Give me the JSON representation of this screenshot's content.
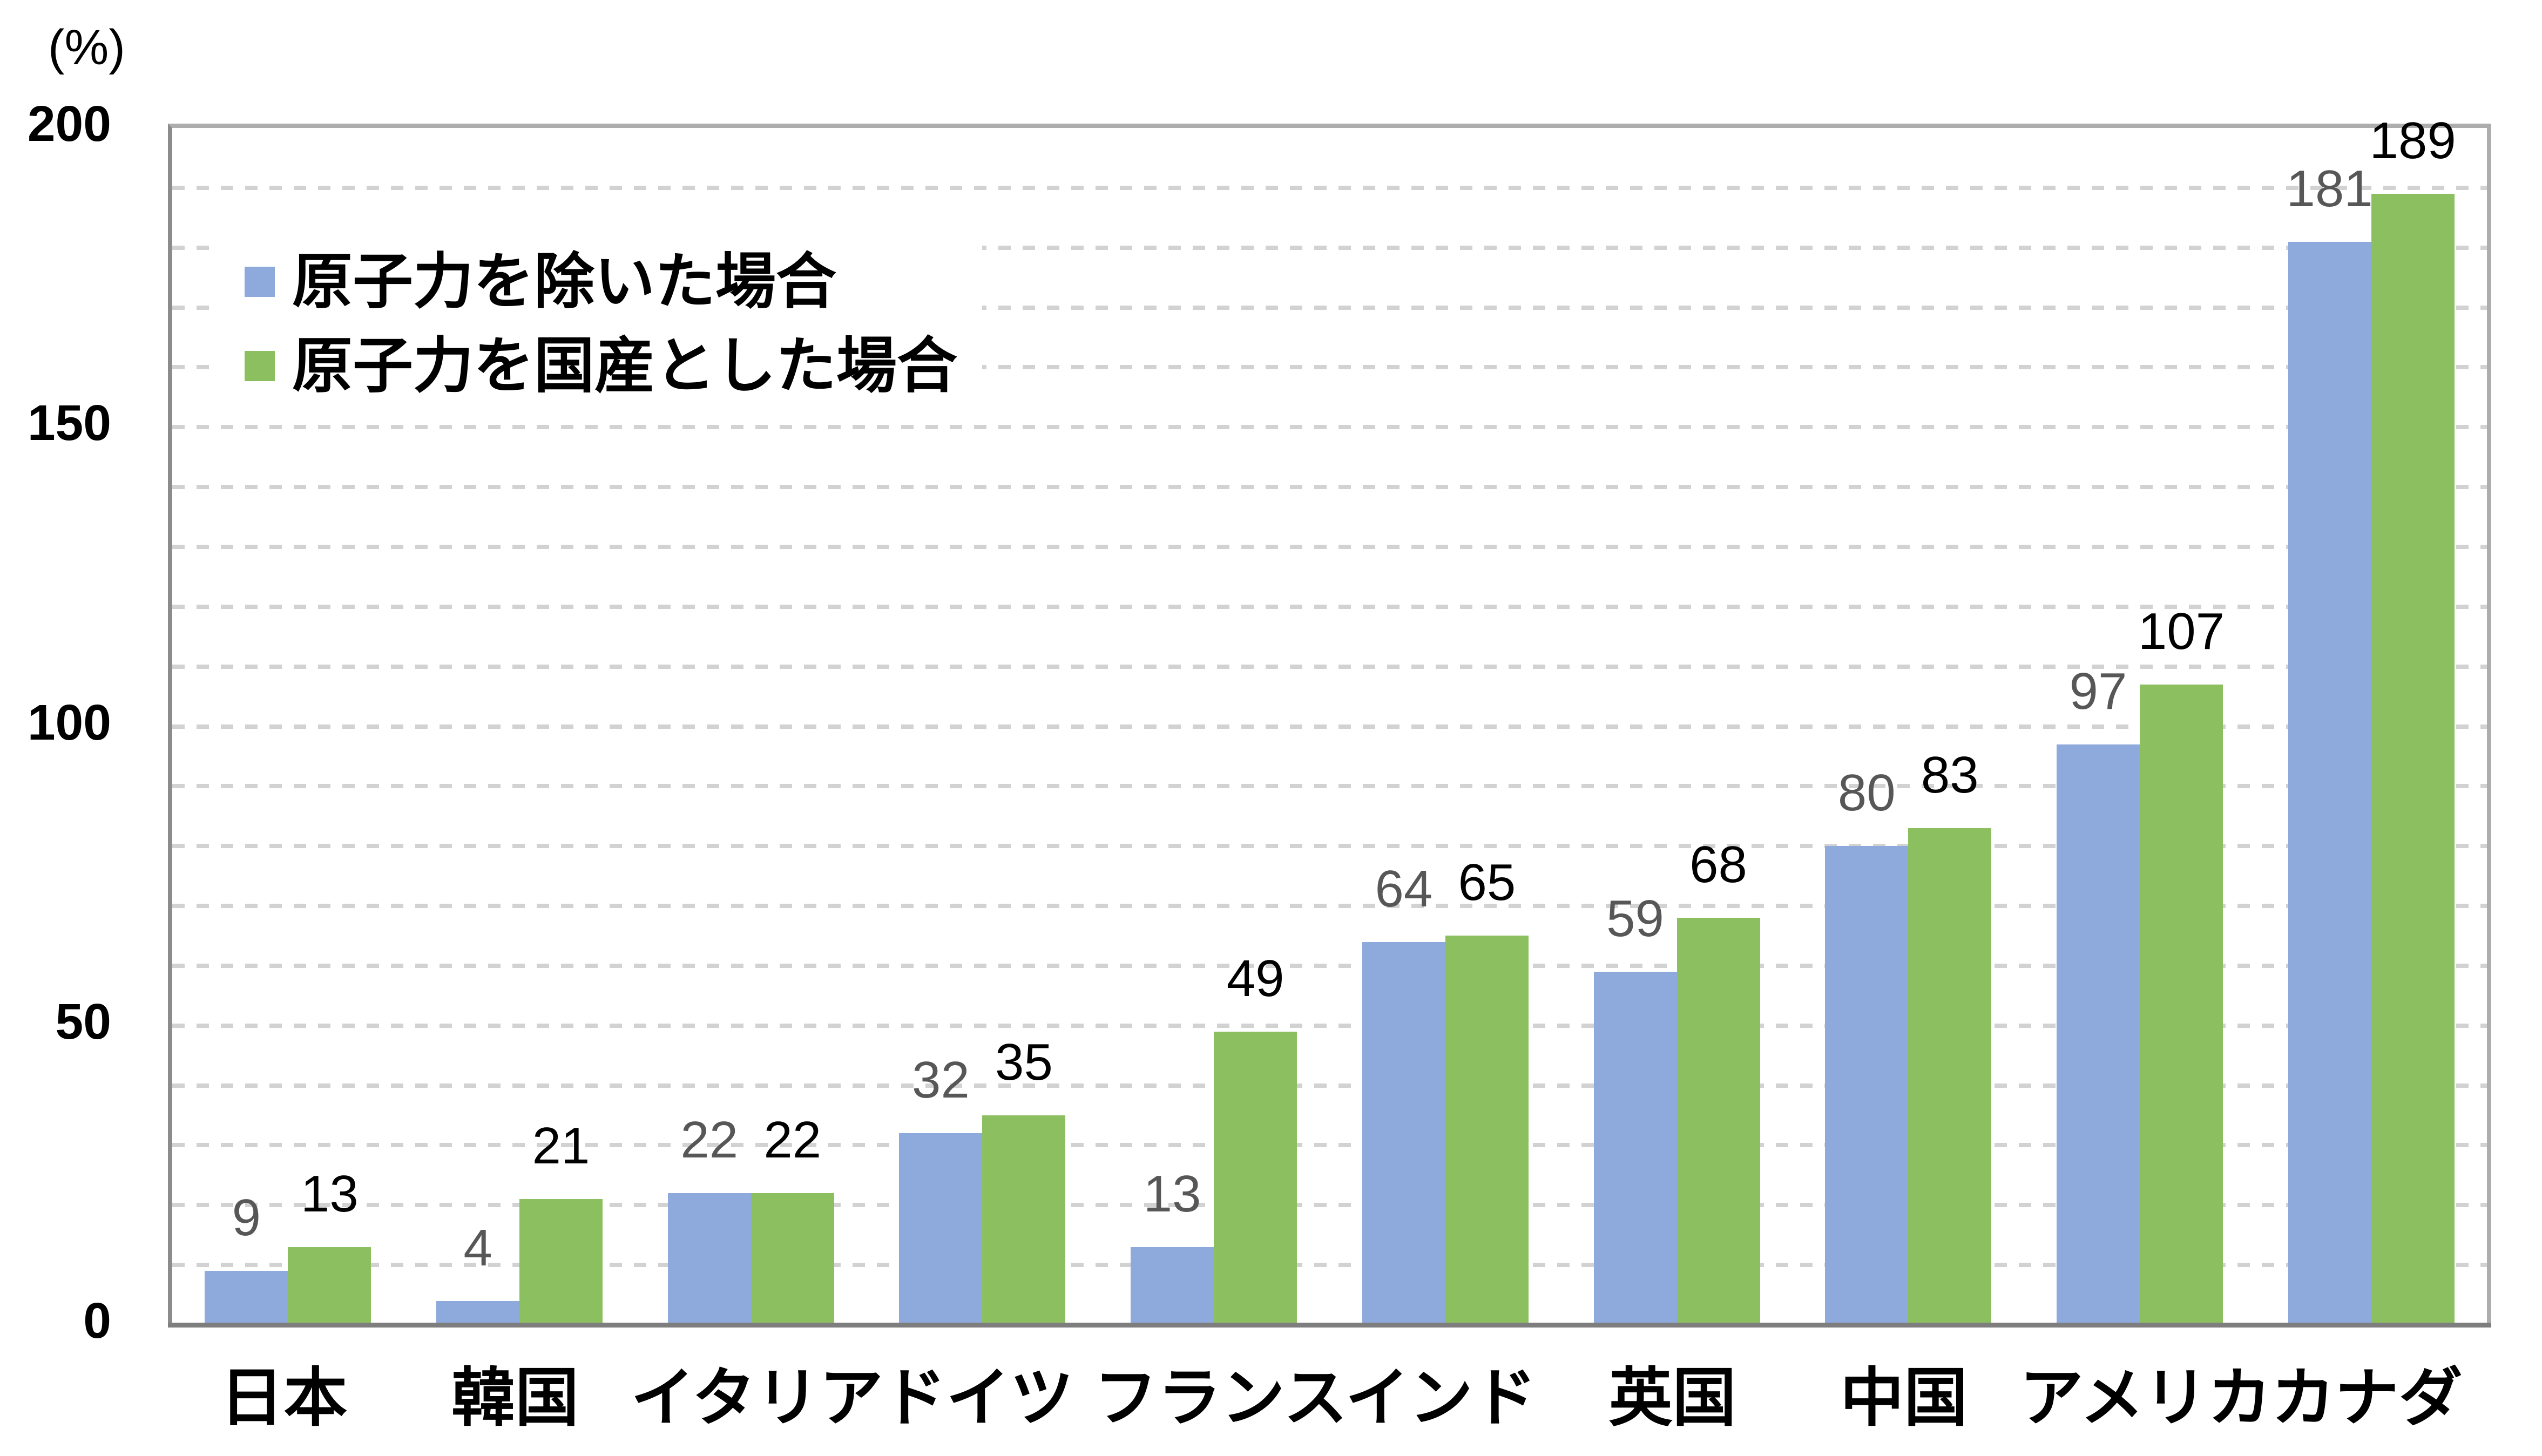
{
  "chart_data": {
    "type": "bar",
    "title": "",
    "ylabel": "(%)",
    "xlabel": "",
    "ylim": [
      0,
      200
    ],
    "yticks": [
      0,
      50,
      100,
      150,
      200
    ],
    "gridline_step": 10,
    "grid": "dashed horizontal gridlines every 10, light gray",
    "legend_position": "inside top-left",
    "categories": [
      "日本",
      "韓国",
      "イタリア",
      "ドイツ",
      "フランス",
      "インド",
      "英国",
      "中国",
      "アメリカ",
      "カナダ"
    ],
    "series": [
      {
        "name": "原子力を除いた場合",
        "color": "#8EA9DB",
        "label_color": "#575757",
        "values": [
          9,
          4,
          22,
          32,
          13,
          64,
          59,
          80,
          97,
          181
        ]
      },
      {
        "name": "原子力を国産とした場合",
        "color": "#8CBF60",
        "label_color": "#000000",
        "values": [
          13,
          21,
          22,
          35,
          49,
          65,
          68,
          83,
          107,
          189
        ]
      }
    ]
  }
}
